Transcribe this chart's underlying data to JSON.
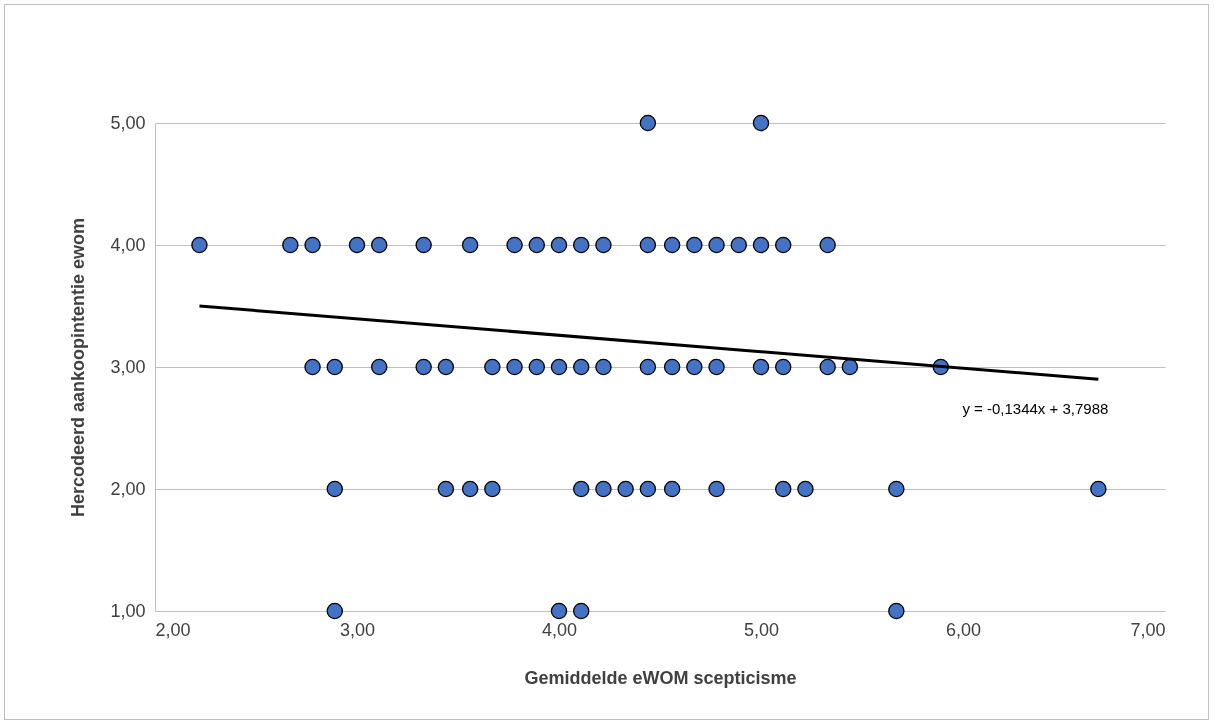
{
  "chart_data": {
    "type": "scatter",
    "xlabel": "Gemiddelde eWOM scepticisme",
    "ylabel": "Hercodeerd aankoopintentie ewom",
    "xlim": [
      2,
      7
    ],
    "xticks": [
      {
        "value": 2,
        "label": "2,00"
      },
      {
        "value": 3,
        "label": "3,00"
      },
      {
        "value": 4,
        "label": "4,00"
      },
      {
        "value": 5,
        "label": "5,00"
      },
      {
        "value": 6,
        "label": "6,00"
      },
      {
        "value": 7,
        "label": "7,00"
      }
    ],
    "ylim": [
      1,
      5
    ],
    "yticks": [
      {
        "value": 1,
        "label": "1,00"
      },
      {
        "value": 2,
        "label": "2,00"
      },
      {
        "value": 3,
        "label": "3,00"
      },
      {
        "value": 4,
        "label": "4,00"
      },
      {
        "value": 5,
        "label": "5,00"
      }
    ],
    "grid": "y",
    "marker": "circle",
    "series": [
      {
        "color": "#4472c4",
        "x": [
          4.44,
          5.0,
          2.22,
          2.67,
          2.78,
          3.0,
          3.11,
          3.33,
          3.56,
          3.78,
          3.89,
          4.0,
          4.11,
          4.22,
          4.44,
          4.56,
          4.67,
          4.78,
          4.89,
          5.0,
          5.11,
          5.33,
          2.78,
          2.89,
          3.11,
          3.33,
          3.44,
          3.67,
          3.78,
          3.89,
          4.0,
          4.11,
          4.22,
          4.44,
          4.56,
          4.67,
          4.78,
          5.0,
          5.11,
          5.33,
          5.44,
          5.89,
          2.89,
          3.44,
          3.56,
          3.67,
          4.11,
          4.22,
          4.33,
          4.44,
          4.56,
          4.78,
          5.11,
          5.22,
          5.67,
          6.67,
          2.89,
          4.0,
          4.11,
          5.67
        ],
        "values": [
          5,
          5,
          4,
          4,
          4,
          4,
          4,
          4,
          4,
          4,
          4,
          4,
          4,
          4,
          4,
          4,
          4,
          4,
          4,
          4,
          4,
          4,
          3,
          3,
          3,
          3,
          3,
          3,
          3,
          3,
          3,
          3,
          3,
          3,
          3,
          3,
          3,
          3,
          3,
          3,
          3,
          3,
          2,
          2,
          2,
          2,
          2,
          2,
          2,
          2,
          2,
          2,
          2,
          2,
          2,
          2,
          1,
          1,
          1,
          1
        ]
      },
      {
        "type": "line",
        "color": "#000000",
        "line_style": "solid",
        "marker": "none",
        "x": [
          2.22,
          6.67
        ],
        "values": [
          3.5,
          2.9
        ]
      }
    ],
    "annotations": [
      {
        "text": "y = -0,1344x + 3,7988",
        "x": 6.67,
        "y": 2.9
      }
    ]
  }
}
